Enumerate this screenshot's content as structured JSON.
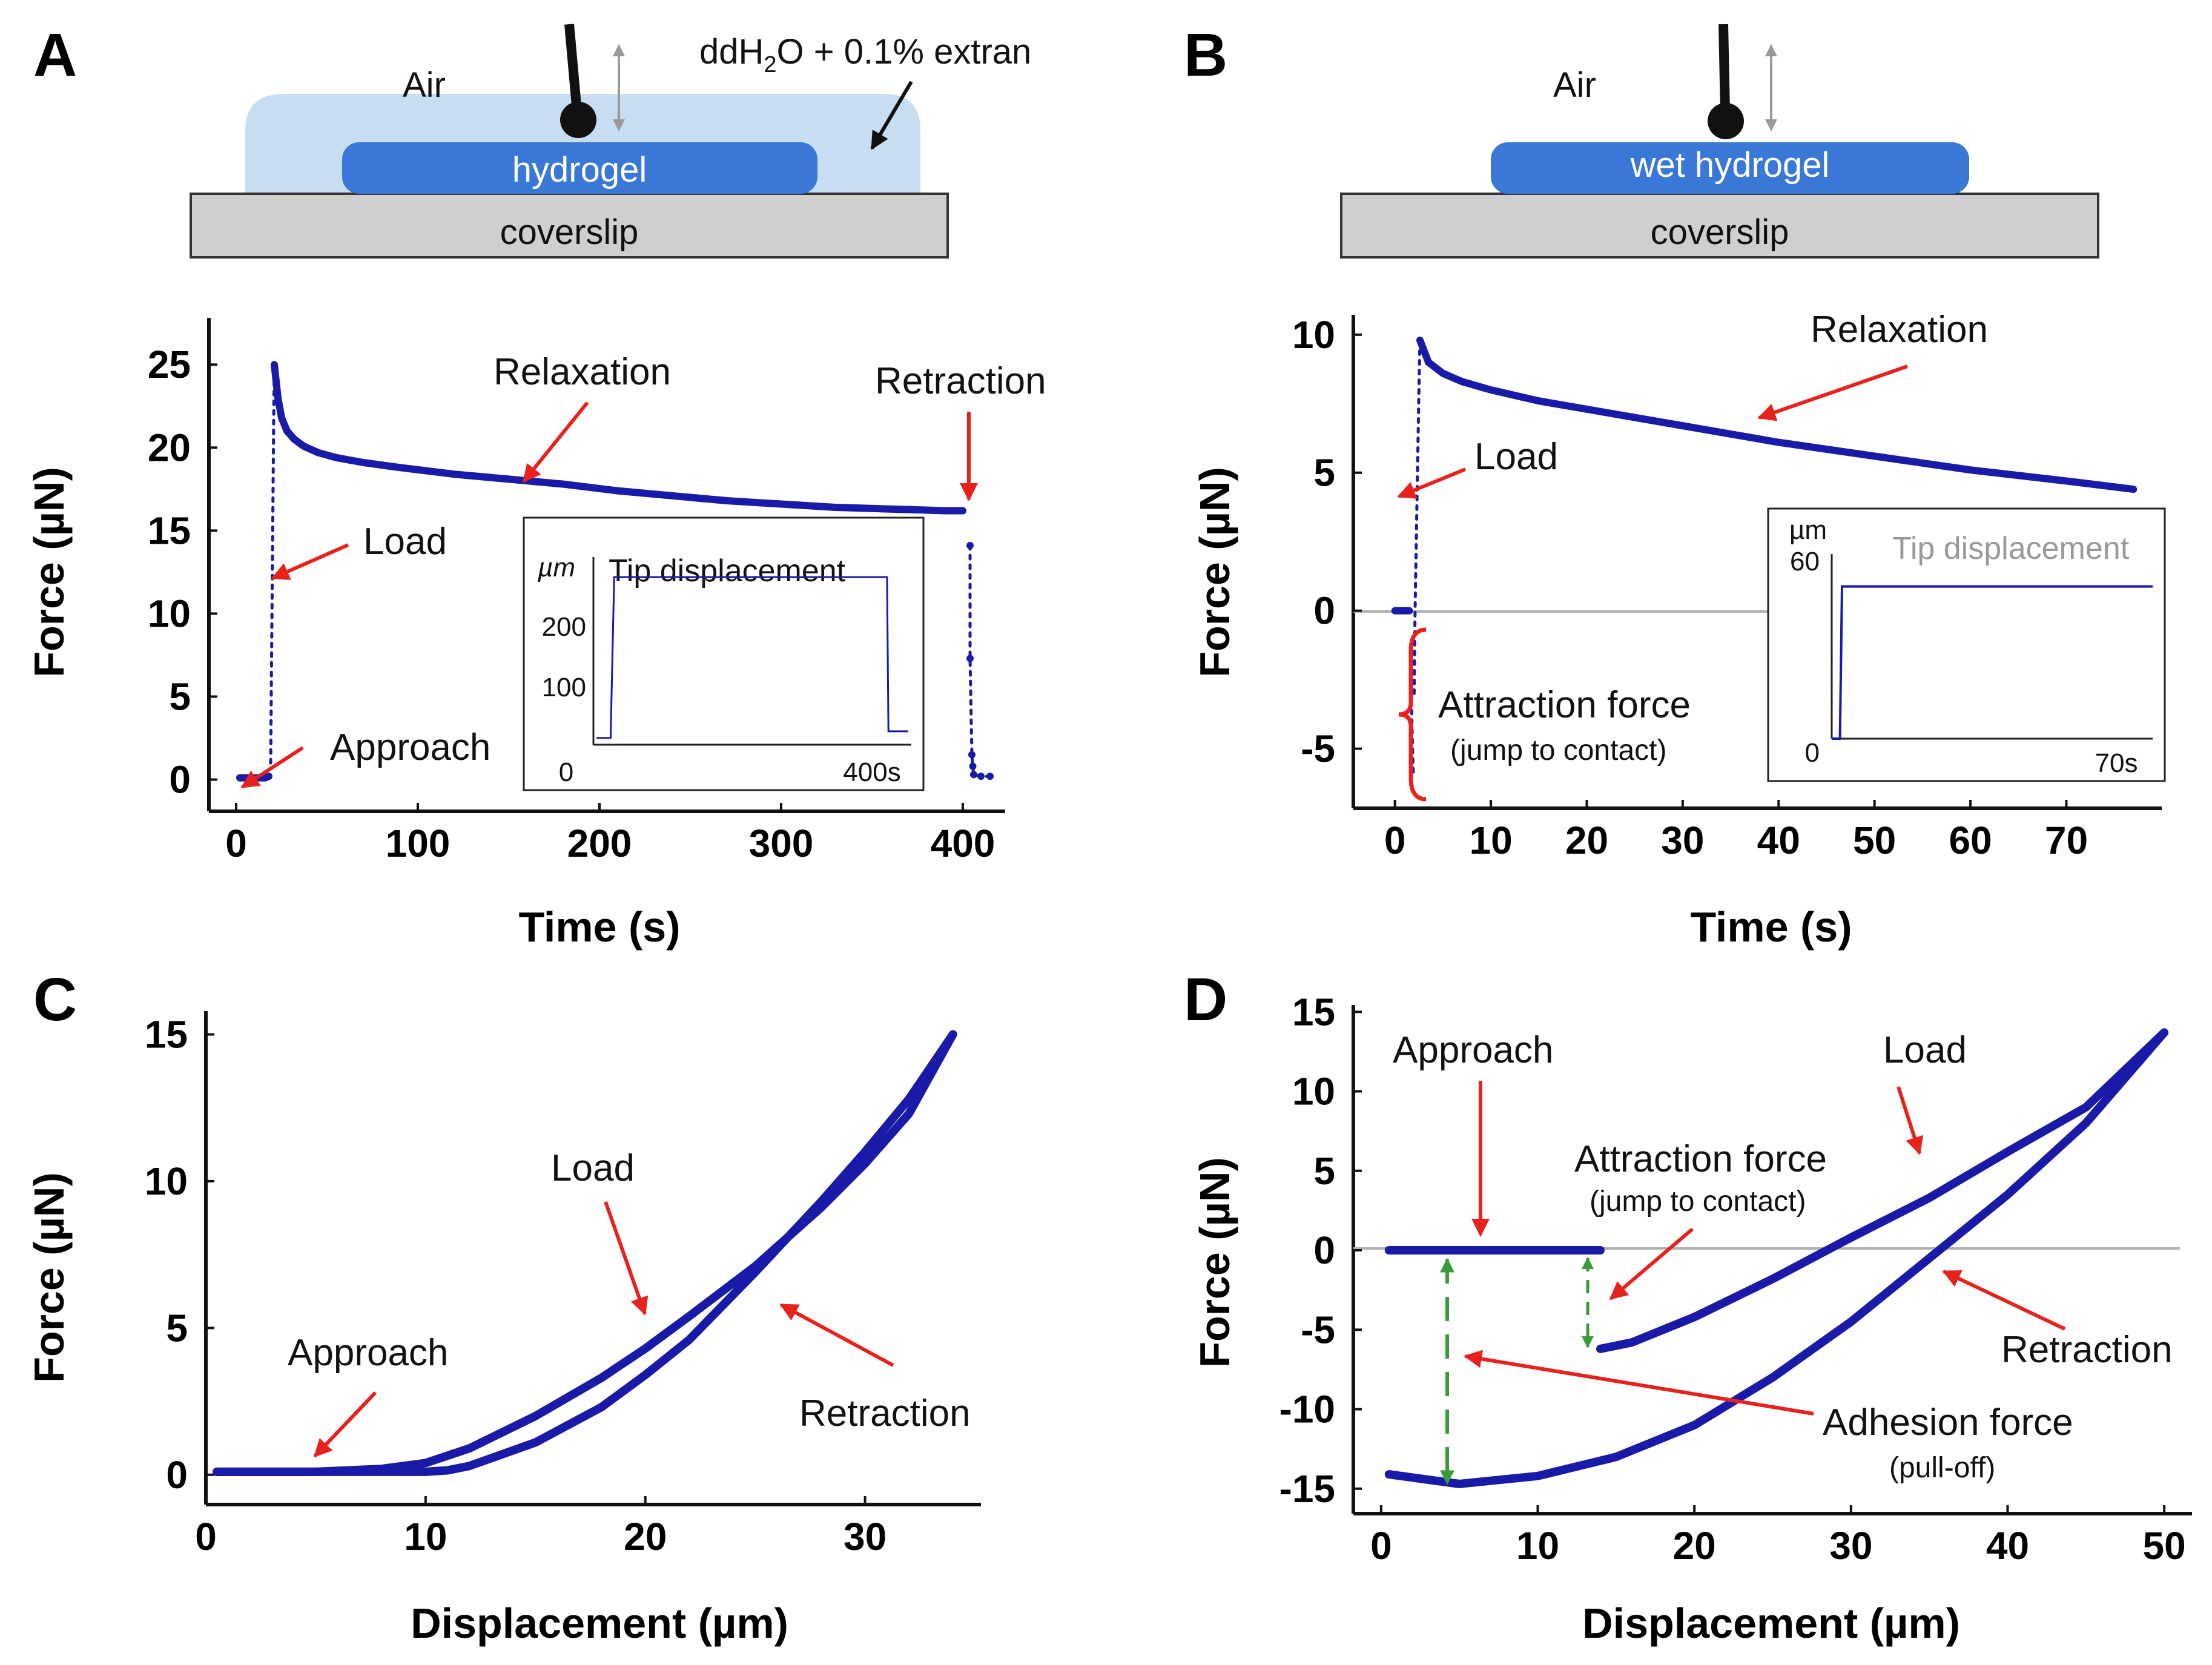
{
  "colors": {
    "data": "#1a1aa8",
    "arrow": "#e8211d",
    "gel": "#3a78d8",
    "water": "#c7ddf2",
    "glass": "#cfcfcf",
    "guide": "#3a9a3a"
  },
  "schematic_a": {
    "air": "Air",
    "medium_main": "ddH",
    "medium_sub": "2",
    "medium_tail": "O + 0.1% extran",
    "gel": "hydrogel",
    "substrate": "coverslip"
  },
  "schematic_b": {
    "air": "Air",
    "gel": "wet hydrogel",
    "substrate": "coverslip"
  },
  "chart_data": [
    {
      "panel": "A",
      "type": "scatter",
      "xlabel": "Time (s)",
      "ylabel": "Force (µN)",
      "xlim": [
        -5,
        420
      ],
      "ylim": [
        -1,
        28
      ],
      "xticks": [
        0,
        100,
        200,
        300,
        400
      ],
      "yticks": [
        0,
        5,
        10,
        15,
        20,
        25
      ],
      "series": [
        {
          "name": "Approach",
          "x": [
            2,
            4,
            6,
            8,
            10,
            12,
            14,
            16,
            18
          ],
          "y": [
            0.1,
            0.1,
            0.1,
            0.1,
            0.1,
            0.1,
            0.1,
            0.1,
            0.2
          ]
        },
        {
          "name": "Load",
          "x": [
            19,
            19.2,
            19.4,
            19.6,
            19.8,
            20,
            20.2,
            20.4,
            20.6,
            20.8,
            21
          ],
          "y": [
            1,
            3.5,
            6,
            8.5,
            11,
            13.5,
            16,
            18.5,
            21,
            23,
            25
          ]
        },
        {
          "name": "Relaxation",
          "x": [
            21,
            23,
            25,
            28,
            32,
            37,
            45,
            55,
            70,
            90,
            120,
            150,
            180,
            210,
            240,
            270,
            300,
            330,
            360,
            390,
            400
          ],
          "y": [
            25,
            23,
            21.8,
            21,
            20.5,
            20.1,
            19.7,
            19.4,
            19.1,
            18.8,
            18.4,
            18.1,
            17.8,
            17.4,
            17.1,
            16.8,
            16.6,
            16.4,
            16.3,
            16.2,
            16.2
          ]
        },
        {
          "name": "Retraction",
          "x": [
            404,
            404,
            405,
            405.5,
            406,
            410,
            415
          ],
          "y": [
            14.1,
            7.3,
            1.5,
            0.8,
            0.3,
            0.2,
            0.2
          ]
        }
      ],
      "annotations": [
        "Relaxation",
        "Retraction",
        "Load",
        "Approach"
      ],
      "inset": {
        "title": "Tip displacement",
        "unit": "µm",
        "yticks": [
          100,
          200
        ],
        "x_start": "0",
        "x_end": "400s",
        "x": [
          0,
          20,
          25,
          410,
          412,
          440
        ],
        "y": [
          0,
          0,
          240,
          240,
          10,
          10
        ],
        "xlim": [
          0,
          440
        ],
        "ylim": [
          -10,
          270
        ]
      }
    },
    {
      "panel": "B",
      "type": "scatter",
      "xlabel": "Time (s)",
      "ylabel": "Force (µN)",
      "xlim": [
        -2,
        79
      ],
      "ylim": [
        -6.5,
        10.5
      ],
      "xticks": [
        0,
        10,
        20,
        30,
        40,
        50,
        60,
        70
      ],
      "yticks": [
        -5,
        0,
        5,
        10
      ],
      "series": [
        {
          "name": "Approach",
          "x": [
            0,
            0.5,
            1,
            1.5
          ],
          "y": [
            0,
            0,
            0,
            0
          ]
        },
        {
          "name": "Jump to contact",
          "x": [
            1.6,
            1.7,
            1.8,
            1.9,
            2.0
          ],
          "y": [
            -1.5,
            -3,
            -4.5,
            -5.8,
            -6
          ]
        },
        {
          "name": "Load",
          "x": [
            2.0,
            2.1,
            2.2,
            2.3,
            2.4,
            2.5,
            2.6
          ],
          "y": [
            -3,
            0,
            2,
            4,
            6,
            8,
            9.8
          ]
        },
        {
          "name": "Relaxation",
          "x": [
            2.6,
            3.5,
            5,
            7,
            10,
            15,
            20,
            30,
            40,
            50,
            60,
            70,
            77
          ],
          "y": [
            9.8,
            9,
            8.6,
            8.3,
            8.0,
            7.6,
            7.3,
            6.7,
            6.1,
            5.6,
            5.1,
            4.7,
            4.4
          ]
        }
      ],
      "annotations": [
        "Relaxation",
        "Load",
        "Attraction force",
        "(jump to contact)"
      ],
      "inset": {
        "title": "Tip displacement",
        "unit": "µm",
        "yticks": [
          0,
          60
        ],
        "x_start": "",
        "x_end": "70s",
        "x": [
          0,
          2,
          2.5,
          78
        ],
        "y": [
          0,
          0,
          55,
          55
        ],
        "xlim": [
          0,
          78
        ],
        "ylim": [
          0,
          70
        ]
      }
    },
    {
      "panel": "C",
      "type": "line",
      "xlabel": "Displacement (µm)",
      "ylabel": "Force (µN)",
      "xlim": [
        0,
        35
      ],
      "ylim": [
        -0.5,
        16
      ],
      "xticks": [
        0,
        10,
        20,
        30
      ],
      "yticks": [
        0,
        5,
        10,
        15
      ],
      "series": [
        {
          "name": "Load",
          "x": [
            0.5,
            5,
            8,
            10,
            12,
            15,
            18,
            20,
            22,
            25,
            28,
            30,
            32,
            34
          ],
          "y": [
            0.1,
            0.1,
            0.2,
            0.4,
            0.9,
            2,
            3.3,
            4.3,
            5.4,
            7.1,
            9.1,
            10.6,
            12.3,
            15
          ]
        },
        {
          "name": "Retraction",
          "x": [
            34,
            32,
            30,
            28,
            25,
            22,
            20,
            18,
            15,
            12,
            11,
            10,
            6,
            0.5
          ],
          "y": [
            15,
            12.8,
            11,
            9.3,
            6.9,
            4.6,
            3.4,
            2.3,
            1.1,
            0.3,
            0.15,
            0.1,
            0.1,
            0.1
          ]
        }
      ],
      "annotations": [
        "Load",
        "Approach",
        "Retraction"
      ]
    },
    {
      "panel": "D",
      "type": "line",
      "xlabel": "Displacement (µm)",
      "ylabel": "Force (µN)",
      "xlim": [
        -1,
        51
      ],
      "ylim": [
        -16,
        16
      ],
      "xticks": [
        0,
        10,
        20,
        30,
        40,
        50
      ],
      "yticks": [
        -15,
        -10,
        -5,
        0,
        5,
        10,
        15
      ],
      "series": [
        {
          "name": "Approach",
          "x": [
            0.5,
            5,
            10,
            14
          ],
          "y": [
            0,
            0,
            0,
            0
          ]
        },
        {
          "name": "Load",
          "x": [
            14,
            16,
            20,
            25,
            30,
            35,
            40,
            45,
            50
          ],
          "y": [
            -6.2,
            -5.8,
            -4.2,
            -1.8,
            0.8,
            3.3,
            6.2,
            9,
            13.7
          ]
        },
        {
          "name": "Retraction",
          "x": [
            50,
            45,
            40,
            35,
            30,
            25,
            20,
            15,
            10,
            5,
            2,
            0.5
          ],
          "y": [
            13.7,
            8,
            3.5,
            -0.5,
            -4.5,
            -8,
            -11,
            -13,
            -14.2,
            -14.7,
            -14.3,
            -14.1
          ]
        }
      ],
      "annotations": [
        "Approach",
        "Load",
        "Attraction force",
        "(jump to contact)",
        "Retraction",
        "Adhesion force",
        "(pull-off)"
      ]
    }
  ]
}
